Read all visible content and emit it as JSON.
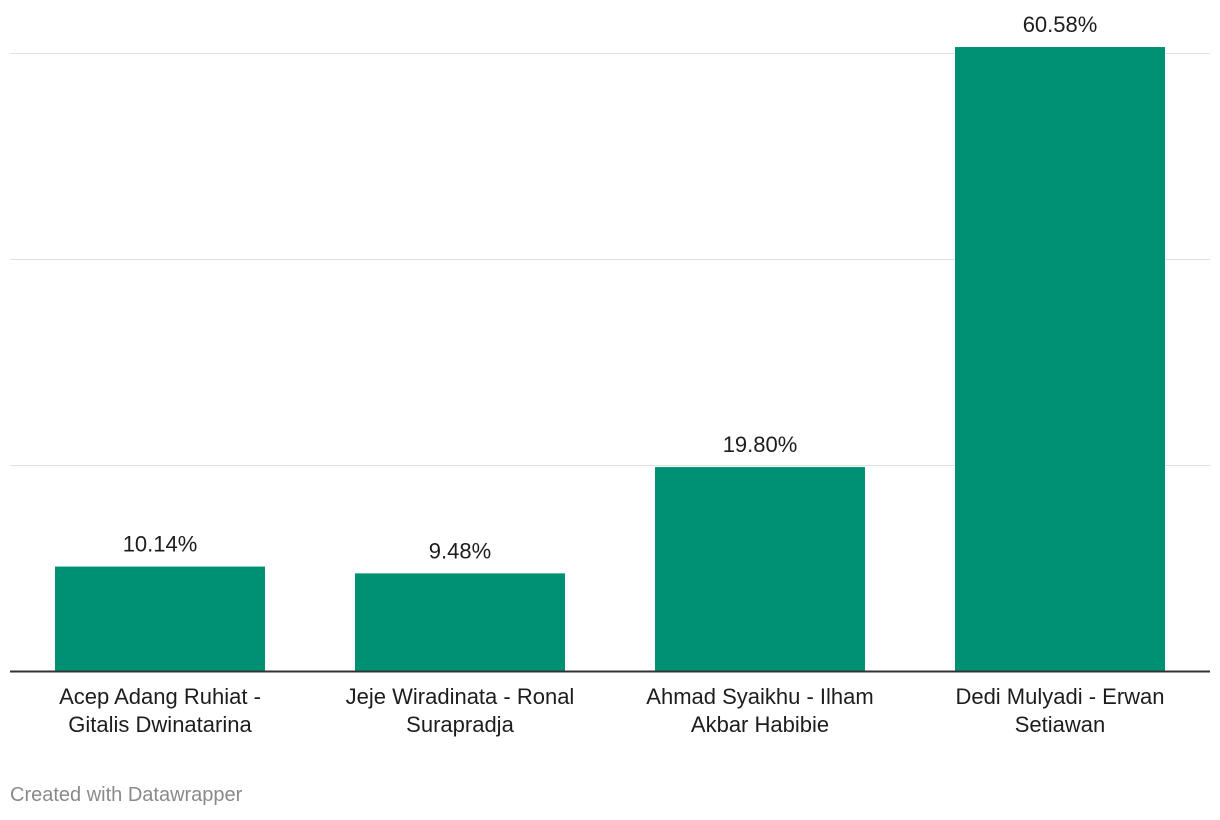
{
  "chart_data": {
    "type": "bar",
    "title": "",
    "xlabel": "",
    "ylabel": "",
    "categories": [
      [
        "Acep Adang Ruhiat -",
        "Gitalis Dwinatarina"
      ],
      [
        "Jeje Wiradinata - Ronal",
        "Surapradja"
      ],
      [
        "Ahmad Syaikhu - Ilham",
        "Akbar Habibie"
      ],
      [
        "Dedi Mulyadi - Erwan",
        "Setiawan"
      ]
    ],
    "values": [
      10.14,
      9.48,
      19.8,
      60.58
    ],
    "value_labels": [
      "10.14%",
      "9.48%",
      "19.80%",
      "60.58%"
    ],
    "ylim": [
      0,
      60
    ],
    "gridlines": [
      20,
      40,
      60
    ],
    "grid": true,
    "legend": "none",
    "bar_color": "#009074"
  },
  "footer": {
    "credit": "Created with Datawrapper"
  }
}
